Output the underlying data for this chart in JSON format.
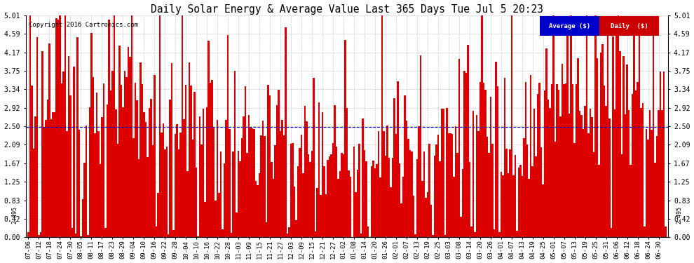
{
  "title": "Daily Solar Energy & Average Value Last 365 Days Tue Jul 5 20:23",
  "copyright": "Copyright 2016 Cartronics.com",
  "bar_color": "#dd0000",
  "avg_line_color": "#0000cc",
  "avg_value": 2.495,
  "ymax": 5.01,
  "yticks": [
    0.0,
    0.42,
    0.83,
    1.25,
    1.67,
    2.09,
    2.5,
    2.92,
    3.34,
    3.75,
    4.17,
    4.59,
    5.01
  ],
  "background_color": "#ffffff",
  "grid_color": "#bbbbbb",
  "legend_avg_bg": "#0000cc",
  "legend_daily_bg": "#cc0000",
  "xtick_labels": [
    "07-06",
    "07-12",
    "07-18",
    "07-24",
    "07-30",
    "08-05",
    "08-11",
    "08-17",
    "08-23",
    "08-29",
    "09-04",
    "09-10",
    "09-16",
    "09-22",
    "09-28",
    "10-04",
    "10-10",
    "10-16",
    "10-22",
    "10-28",
    "11-03",
    "11-09",
    "11-15",
    "11-21",
    "11-27",
    "12-03",
    "12-09",
    "12-15",
    "12-21",
    "12-27",
    "01-02",
    "01-08",
    "01-14",
    "01-20",
    "01-26",
    "02-01",
    "02-07",
    "02-13",
    "02-19",
    "02-25",
    "03-03",
    "03-08",
    "03-14",
    "03-20",
    "03-26",
    "04-01",
    "04-07",
    "04-13",
    "04-19",
    "04-25",
    "05-01",
    "05-07",
    "05-13",
    "05-19",
    "05-25",
    "05-31",
    "06-06",
    "06-12",
    "06-18",
    "06-24",
    "06-30"
  ]
}
